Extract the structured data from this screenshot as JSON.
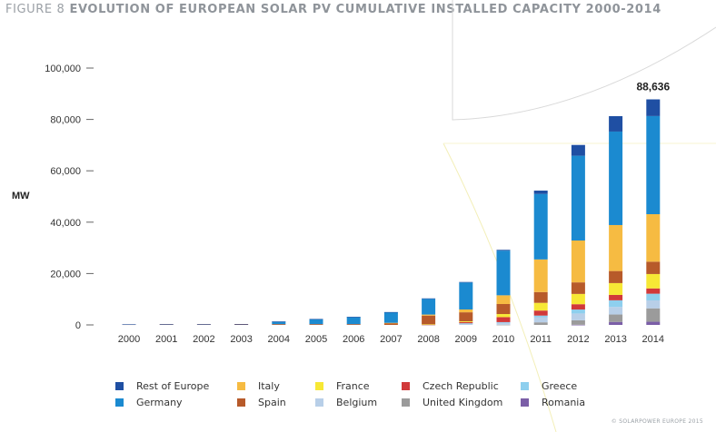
{
  "title": {
    "figure": "FIGURE 8",
    "text": "EVOLUTION OF EUROPEAN SOLAR PV CUMULATIVE INSTALLED CAPACITY 2000-2014"
  },
  "credit": "© SOLARPOWER EUROPE 2015",
  "chart_data": {
    "type": "bar",
    "stacked": true,
    "title": "EVOLUTION OF EUROPEAN SOLAR PV CUMULATIVE INSTALLED CAPACITY 2000-2014",
    "ylabel": "MW",
    "xlabel": "",
    "ylim": [
      0,
      100000
    ],
    "yticks": [
      0,
      20000,
      40000,
      60000,
      80000,
      100000
    ],
    "ytick_labels": [
      "0",
      "20,000",
      "40,000",
      "60,000",
      "80,000",
      "100,000"
    ],
    "grid": false,
    "legend": "bottom",
    "categories": [
      "2000",
      "2001",
      "2002",
      "2003",
      "2004",
      "2005",
      "2006",
      "2007",
      "2008",
      "2009",
      "2010",
      "2011",
      "2012",
      "2013",
      "2014"
    ],
    "series": [
      {
        "name": "Romania",
        "color": "#7b5ea7",
        "values": [
          0,
          0,
          0,
          0,
          0,
          0,
          0,
          0,
          0,
          0,
          0,
          0,
          50,
          1150,
          1220
        ]
      },
      {
        "name": "United Kingdom",
        "color": "#9b9b9b",
        "values": [
          0,
          0,
          0,
          0,
          0,
          0,
          0,
          0,
          0,
          0,
          80,
          1000,
          1750,
          2900,
          5230
        ]
      },
      {
        "name": "Belgium",
        "color": "#b8cfe8",
        "values": [
          0,
          0,
          0,
          0,
          0,
          0,
          0,
          0,
          70,
          600,
          800,
          2000,
          2650,
          2950,
          3100
        ]
      },
      {
        "name": "Greece",
        "color": "#8ecfee",
        "values": [
          0,
          0,
          0,
          0,
          0,
          0,
          0,
          0,
          0,
          50,
          200,
          630,
          1540,
          2580,
          2600
        ]
      },
      {
        "name": "Czech Republic",
        "color": "#d1393a",
        "values": [
          0,
          0,
          0,
          0,
          0,
          0,
          0,
          0,
          60,
          460,
          1950,
          1960,
          2070,
          2100,
          2060
        ]
      },
      {
        "name": "France",
        "color": "#f7e835",
        "values": [
          0,
          0,
          0,
          0,
          0,
          0,
          0,
          0,
          100,
          300,
          1200,
          3000,
          4000,
          4600,
          5600
        ]
      },
      {
        "name": "Spain",
        "color": "#b75a2a",
        "values": [
          200,
          250,
          250,
          300,
          300,
          300,
          300,
          700,
          3400,
          3500,
          3900,
          4200,
          4500,
          4700,
          4800
        ]
      },
      {
        "name": "Italy",
        "color": "#f6bb42",
        "values": [
          0,
          0,
          0,
          0,
          0,
          0,
          0,
          100,
          400,
          1100,
          3400,
          12700,
          16300,
          17900,
          18500
        ]
      },
      {
        "name": "Germany",
        "color": "#1b8ad0",
        "values": [
          0,
          0,
          0,
          0,
          1000,
          2000,
          2800,
          4100,
          6100,
          10500,
          17400,
          25500,
          33000,
          36400,
          38200
        ]
      },
      {
        "name": "Rest of Europe",
        "color": "#1f4fa3",
        "values": [
          10,
          10,
          10,
          10,
          10,
          10,
          10,
          100,
          200,
          200,
          300,
          1300,
          4200,
          6000,
          6500
        ]
      }
    ],
    "total_labels": [
      {
        "category": "2014",
        "text": "88,636"
      }
    ]
  },
  "legend": {
    "row1": [
      {
        "label": "Rest of Europe",
        "color": "#1f4fa3"
      },
      {
        "label": "Italy",
        "color": "#f6bb42"
      },
      {
        "label": "France",
        "color": "#f7e835"
      },
      {
        "label": "Czech Republic",
        "color": "#d1393a"
      },
      {
        "label": "Greece",
        "color": "#8ecfee"
      }
    ],
    "row2": [
      {
        "label": "Germany",
        "color": "#1b8ad0"
      },
      {
        "label": "Spain",
        "color": "#b75a2a"
      },
      {
        "label": "Belgium",
        "color": "#b8cfe8"
      },
      {
        "label": "United Kingdom",
        "color": "#9b9b9b"
      },
      {
        "label": "Romania",
        "color": "#7b5ea7"
      }
    ]
  }
}
